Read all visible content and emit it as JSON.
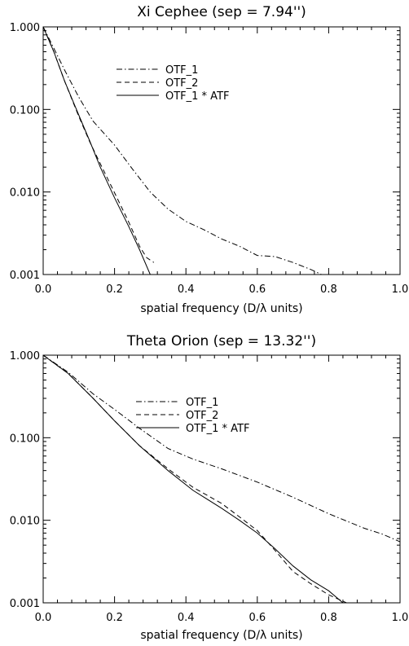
{
  "chart_data": [
    {
      "type": "line",
      "title": "Xi Cephee (sep = 7.94'')",
      "xlabel": "spatial frequency (D/λ units)",
      "ylabel": "",
      "xlim": [
        0.0,
        1.0
      ],
      "ylim": [
        0.001,
        1.0
      ],
      "yscale": "log",
      "xticks": [
        "0.0",
        "0.2",
        "0.4",
        "0.6",
        "0.8",
        "1.0"
      ],
      "yticks": [
        "0.001",
        "0.010",
        "0.100",
        "1.000"
      ],
      "legend_position": "upper-middle",
      "series": [
        {
          "name": "OTF_1",
          "style": "dashdot",
          "x": [
            0.0,
            0.03,
            0.06,
            0.1,
            0.14,
            0.2,
            0.25,
            0.3,
            0.35,
            0.4,
            0.45,
            0.5,
            0.55,
            0.6,
            0.65,
            0.7,
            0.75,
            0.78
          ],
          "y": [
            1.0,
            0.55,
            0.3,
            0.14,
            0.072,
            0.037,
            0.019,
            0.01,
            0.0062,
            0.0044,
            0.0035,
            0.0027,
            0.0022,
            0.0017,
            0.00165,
            0.0014,
            0.00115,
            0.001
          ]
        },
        {
          "name": "OTF_2",
          "style": "dashed",
          "x": [
            0.0,
            0.03,
            0.06,
            0.1,
            0.13,
            0.16,
            0.2,
            0.24,
            0.27,
            0.29,
            0.31
          ],
          "y": [
            1.0,
            0.5,
            0.22,
            0.082,
            0.041,
            0.022,
            0.0098,
            0.0043,
            0.0022,
            0.0016,
            0.0014
          ]
        },
        {
          "name": "OTF_1 * ATF",
          "style": "solid",
          "x": [
            0.0,
            0.03,
            0.06,
            0.1,
            0.13,
            0.16,
            0.2,
            0.24,
            0.27,
            0.3
          ],
          "y": [
            1.0,
            0.5,
            0.22,
            0.085,
            0.042,
            0.02,
            0.0085,
            0.0038,
            0.002,
            0.001
          ]
        }
      ]
    },
    {
      "type": "line",
      "title": "Theta Orion (sep = 13.32'')",
      "xlabel": "spatial frequency (D/λ units)",
      "ylabel": "",
      "xlim": [
        0.0,
        1.0
      ],
      "ylim": [
        0.001,
        1.0
      ],
      "yscale": "log",
      "xticks": [
        "0.0",
        "0.2",
        "0.4",
        "0.6",
        "0.8",
        "1.0"
      ],
      "yticks": [
        "0.001",
        "0.010",
        "0.100",
        "1.000"
      ],
      "legend_position": "upper-middle",
      "series": [
        {
          "name": "OTF_1",
          "style": "dashdot",
          "x": [
            0.0,
            0.07,
            0.14,
            0.2,
            0.27,
            0.35,
            0.42,
            0.5,
            0.6,
            0.7,
            0.8,
            0.85,
            0.9,
            0.95,
            1.0
          ],
          "y": [
            1.0,
            0.62,
            0.34,
            0.22,
            0.13,
            0.074,
            0.055,
            0.042,
            0.029,
            0.019,
            0.012,
            0.0098,
            0.008,
            0.0068,
            0.0055
          ]
        },
        {
          "name": "OTF_2",
          "style": "dashed",
          "x": [
            0.0,
            0.07,
            0.14,
            0.2,
            0.27,
            0.35,
            0.42,
            0.5,
            0.55,
            0.6,
            0.65,
            0.7,
            0.75,
            0.8,
            0.85
          ],
          "y": [
            1.0,
            0.6,
            0.3,
            0.16,
            0.08,
            0.042,
            0.025,
            0.016,
            0.011,
            0.0075,
            0.0043,
            0.0024,
            0.0017,
            0.00125,
            0.001
          ]
        },
        {
          "name": "OTF_1 * ATF",
          "style": "solid",
          "x": [
            0.0,
            0.07,
            0.14,
            0.2,
            0.27,
            0.35,
            0.42,
            0.5,
            0.55,
            0.6,
            0.65,
            0.7,
            0.75,
            0.8,
            0.84
          ],
          "y": [
            1.0,
            0.6,
            0.3,
            0.16,
            0.08,
            0.04,
            0.023,
            0.014,
            0.01,
            0.007,
            0.0045,
            0.0028,
            0.0019,
            0.0014,
            0.001
          ]
        }
      ]
    }
  ]
}
